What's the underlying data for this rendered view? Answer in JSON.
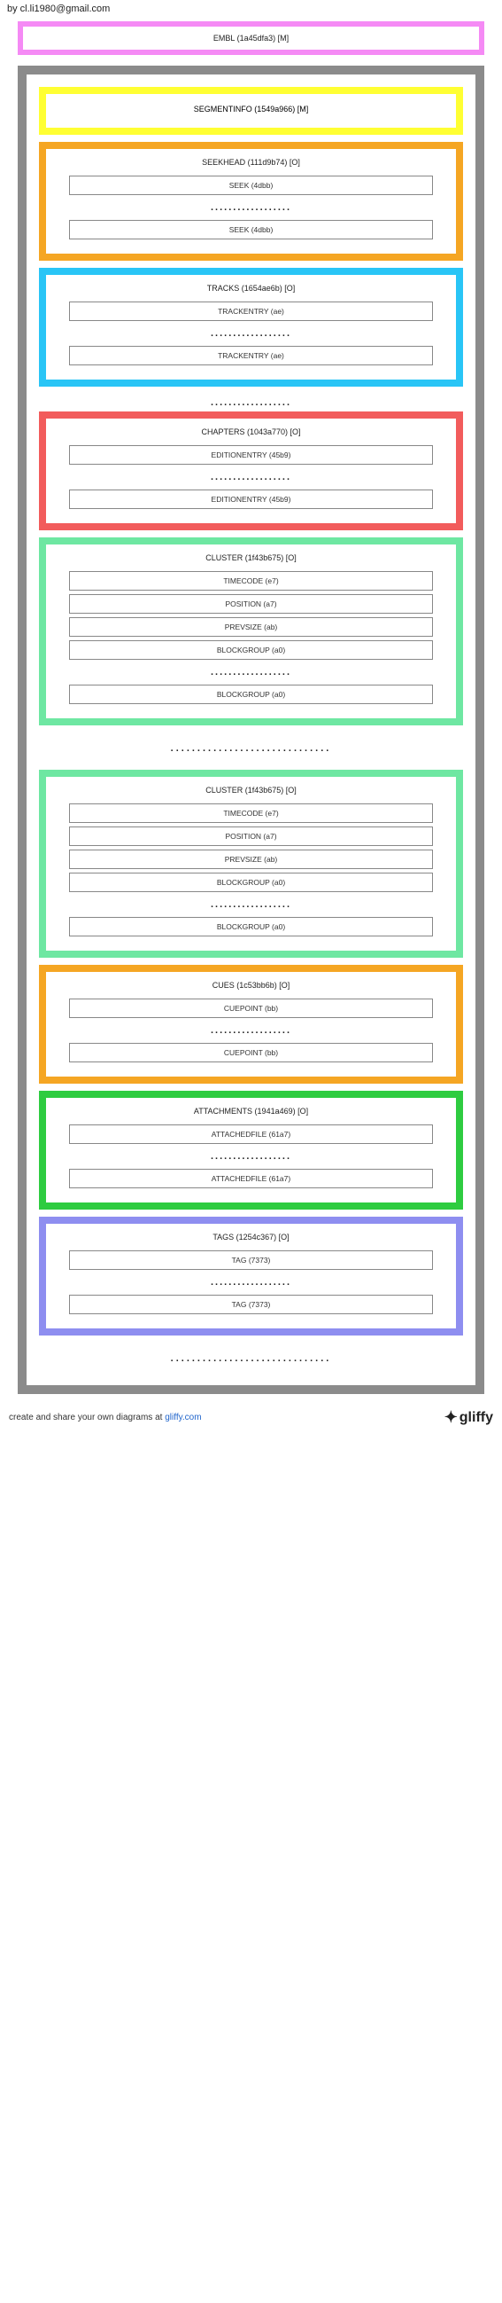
{
  "byline": "by cl.li1980@gmail.com",
  "ebml": {
    "label": "EMBL (1a45dfa3) [M]",
    "border_color": "#f58af5"
  },
  "segment_border_color": "#8b8b8b",
  "boxes": [
    {
      "title": "SEGMENTINFO (1549a966) [M]",
      "border_color": "#ffff33",
      "children": []
    },
    {
      "title": "SEEKHEAD (111d9b74) [O]",
      "border_color": "#f5a623",
      "children": [
        "SEEK (4dbb)",
        "...",
        "SEEK (4dbb)"
      ]
    },
    {
      "title": "TRACKS (1654ae6b) [O]",
      "border_color": "#29c5f6",
      "children": [
        "TRACKENTRY (ae)",
        "...",
        "TRACKENTRY (ae)"
      ]
    },
    {
      "sep": true
    },
    {
      "title": "CHAPTERS (1043a770) [O]",
      "border_color": "#f25c5c",
      "children": [
        "EDITIONENTRY (45b9)",
        "...",
        "EDITIONENTRY (45b9)"
      ]
    },
    {
      "title": "CLUSTER (1f43b675) [O]",
      "border_color": "#6ee7a2",
      "children": [
        "TIMECODE (e7)",
        "POSITION (a7)",
        "PREVSIZE (ab)",
        "BLOCKGROUP (a0)",
        "...",
        "BLOCKGROUP (a0)"
      ]
    },
    {
      "sep_wide": true
    },
    {
      "title": "CLUSTER (1f43b675) [O]",
      "border_color": "#6ee7a2",
      "children": [
        "TIMECODE (e7)",
        "POSITION (a7)",
        "PREVSIZE (ab)",
        "BLOCKGROUP (a0)",
        "...",
        "BLOCKGROUP (a0)"
      ]
    },
    {
      "title": "CUES (1c53bb6b) [O]",
      "border_color": "#f5a623",
      "children": [
        "CUEPOINT (bb)",
        "...",
        "CUEPOINT (bb)"
      ]
    },
    {
      "title": "ATTACHMENTS (1941a469) [O]",
      "border_color": "#2ecc40",
      "children": [
        "ATTACHEDFILE (61a7)",
        "...",
        "ATTACHEDFILE (61a7)"
      ]
    },
    {
      "title": "TAGS (1254c367) [O]",
      "border_color": "#8e8ef0",
      "children": [
        "TAG (7373)",
        "...",
        "TAG (7373)"
      ]
    },
    {
      "sep_wide": true
    }
  ],
  "footer": {
    "text_before": "create and share your own diagrams at ",
    "link_text": "gliffy.com",
    "logo_text": "gliffy"
  }
}
